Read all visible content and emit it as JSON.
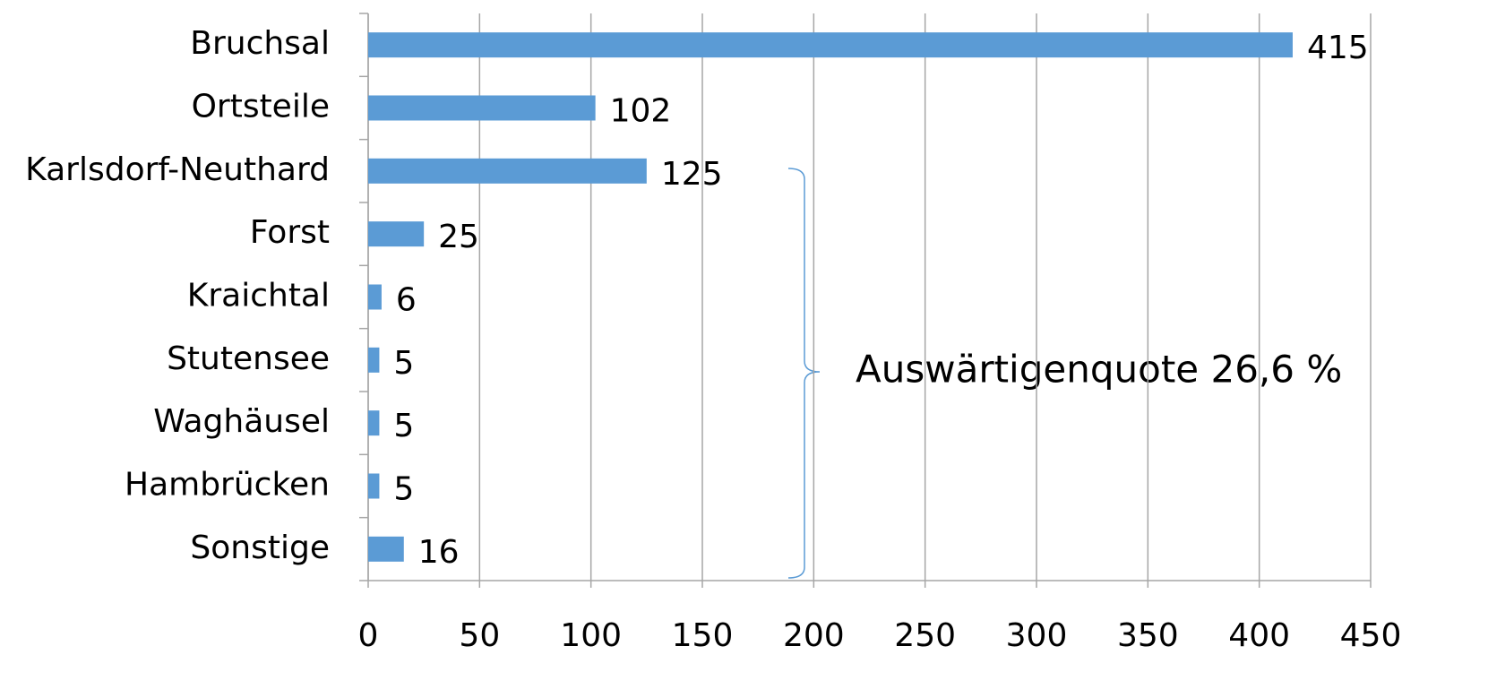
{
  "chart_data": {
    "type": "bar",
    "orientation": "horizontal",
    "categories": [
      "Bruchsal",
      "Ortsteile",
      "Karlsdorf-Neuthard",
      "Forst",
      "Kraichtal",
      "Stutensee",
      "Waghäusel",
      "Hambrücken",
      "Sonstige"
    ],
    "values": [
      415,
      102,
      125,
      25,
      6,
      5,
      5,
      5,
      16
    ],
    "color": "#5b9bd5",
    "xlim": [
      0,
      450
    ],
    "xticks": [
      0,
      50,
      100,
      150,
      200,
      250,
      300,
      350,
      400,
      450
    ],
    "grid": true,
    "annotation": "Auswärtigenquote 26,6 %"
  }
}
